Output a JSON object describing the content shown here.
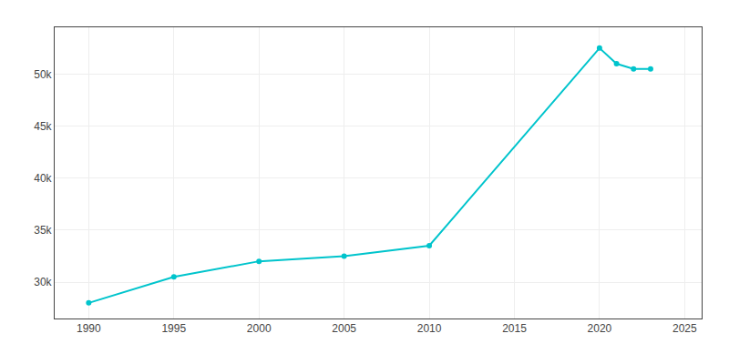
{
  "chart_data": {
    "type": "line",
    "x": [
      1990,
      1995,
      2000,
      2005,
      2010,
      2020,
      2021,
      2022,
      2023
    ],
    "values": [
      28000,
      30500,
      32000,
      32500,
      33500,
      52500,
      51000,
      50500,
      50500
    ],
    "color": "#00c4cc",
    "marker": "circle",
    "xlim": [
      1988,
      2026
    ],
    "ylim": [
      26500,
      54500
    ],
    "xticks": [
      1990,
      1995,
      2000,
      2005,
      2010,
      2015,
      2020,
      2025
    ],
    "yticks": [
      {
        "value": 30000,
        "label": "30k"
      },
      {
        "value": 35000,
        "label": "35k"
      },
      {
        "value": 40000,
        "label": "40k"
      },
      {
        "value": 45000,
        "label": "45k"
      },
      {
        "value": 50000,
        "label": "50k"
      }
    ],
    "grid": true
  }
}
